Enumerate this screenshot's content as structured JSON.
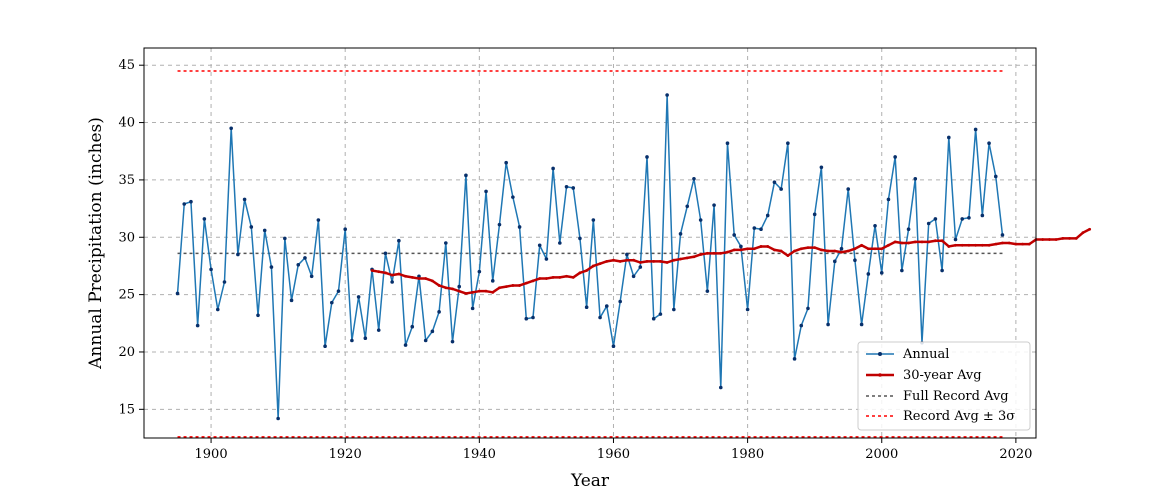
{
  "chart_data": {
    "type": "line",
    "xlabel": "Year",
    "ylabel": "Annual Precipitation (inches)",
    "xlim": [
      1890,
      2023
    ],
    "ylim": [
      12.5,
      46.5
    ],
    "xticks": [
      1900,
      1920,
      1940,
      1960,
      1980,
      2000,
      2020
    ],
    "yticks": [
      15,
      20,
      25,
      30,
      35,
      40,
      45
    ],
    "grid": true,
    "legend_position": "lower-right",
    "colors": {
      "annual": "#1f77b4",
      "annual_marker": "#08306b",
      "rolling": "#c00000",
      "full_avg": "#555555",
      "sigma": "#ff0000"
    },
    "series": [
      {
        "name": "Annual",
        "x_start": 1895,
        "values": [
          25.1,
          32.9,
          33.1,
          22.3,
          31.6,
          27.2,
          23.7,
          26.1,
          39.5,
          28.5,
          33.3,
          30.9,
          23.2,
          30.6,
          27.4,
          14.2,
          29.9,
          24.5,
          27.6,
          28.2,
          26.6,
          31.5,
          20.5,
          24.3,
          25.3,
          30.7,
          21.0,
          24.8,
          21.2,
          27.2,
          21.9,
          28.6,
          26.1,
          29.7,
          20.6,
          22.2,
          26.6,
          21.0,
          21.8,
          23.5,
          29.5,
          20.9,
          25.7,
          35.4,
          23.8,
          27.0,
          34.0,
          26.2,
          31.1,
          36.5,
          33.5,
          30.9,
          22.9,
          23.0,
          29.3,
          28.1,
          36.0,
          29.5,
          34.4,
          34.3,
          29.9,
          23.9,
          31.5,
          23.0,
          24.0,
          20.5,
          24.4,
          28.5,
          26.6,
          27.4,
          37.0,
          22.9,
          23.3,
          42.4,
          23.7,
          30.3,
          32.7,
          35.1,
          31.5,
          25.3,
          32.8,
          16.9,
          38.2,
          30.2,
          29.2,
          23.7,
          30.8,
          30.7,
          31.9,
          34.8,
          34.2,
          38.2,
          19.4,
          22.3,
          23.8,
          32.0,
          36.1,
          22.4,
          27.9,
          29.0,
          34.2,
          28.0,
          22.4,
          26.8,
          31.0,
          26.9,
          33.3,
          37.0,
          27.1,
          30.7,
          35.1,
          20.8,
          31.2,
          31.6,
          27.1,
          38.7,
          29.8,
          31.6,
          31.7,
          39.4,
          31.9,
          38.2,
          35.3,
          30.2
        ]
      },
      {
        "name": "30-year Avg",
        "x_start": 1924,
        "values": [
          27.1,
          27.0,
          26.9,
          26.7,
          26.8,
          26.6,
          26.5,
          26.4,
          26.4,
          26.2,
          25.8,
          25.6,
          25.5,
          25.3,
          25.1,
          25.2,
          25.3,
          25.3,
          25.2,
          25.6,
          25.7,
          25.8,
          25.8,
          26.0,
          26.2,
          26.4,
          26.4,
          26.5,
          26.5,
          26.6,
          26.5,
          26.9,
          27.1,
          27.5,
          27.7,
          27.9,
          28.0,
          27.9,
          28.0,
          28.0,
          27.8,
          27.9,
          27.9,
          27.9,
          27.8,
          28.0,
          28.1,
          28.2,
          28.3,
          28.5,
          28.6,
          28.6,
          28.6,
          28.7,
          28.9,
          28.9,
          29.0,
          29.0,
          29.2,
          29.2,
          28.9,
          28.8,
          28.4,
          28.8,
          29.0,
          29.1,
          29.1,
          28.9,
          28.8,
          28.8,
          28.7,
          28.8,
          29.0,
          29.3,
          29.0,
          29.0,
          29.0,
          29.3,
          29.6,
          29.5,
          29.5,
          29.6,
          29.6,
          29.6,
          29.7,
          29.7,
          29.2,
          29.3,
          29.3,
          29.3,
          29.3,
          29.3,
          29.3,
          29.4,
          29.5,
          29.5,
          29.4,
          29.4,
          29.4,
          29.8,
          29.8,
          29.8,
          29.8,
          29.9,
          29.9,
          29.9,
          30.4,
          30.7
        ]
      },
      {
        "name": "Full Record Avg",
        "x": [
          1895,
          2018
        ],
        "values": [
          28.6,
          28.6
        ]
      },
      {
        "name": "Record Avg ± 3σ",
        "x": [
          1895,
          2018
        ],
        "upper": 44.5,
        "lower": 12.6
      }
    ]
  }
}
